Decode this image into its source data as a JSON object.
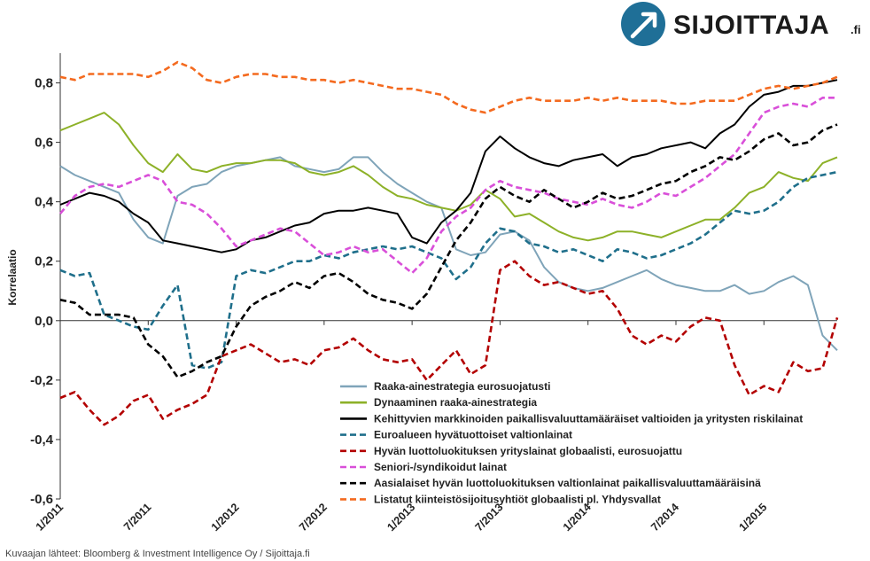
{
  "brand": {
    "name": "SIJOITTAJA",
    "suffix": ".fi",
    "accent": "#1f6f97"
  },
  "source_note": "Kuvaajan lähteet: Bloomberg & Investment Intelligence Oy / Sijoittaja.fi",
  "chart_data": {
    "type": "line",
    "title": "",
    "xlabel": "",
    "ylabel": "Korrelaatio",
    "ylim": [
      -0.6,
      0.9
    ],
    "yticks": [
      {
        "v": 0.8,
        "label": "0,8"
      },
      {
        "v": 0.6,
        "label": "0,6"
      },
      {
        "v": 0.4,
        "label": "0,4"
      },
      {
        "v": 0.2,
        "label": "0,2"
      },
      {
        "v": 0.0,
        "label": "0,0"
      },
      {
        "v": -0.2,
        "label": "-0,2"
      },
      {
        "v": -0.4,
        "label": "-0,4"
      },
      {
        "v": -0.6,
        "label": "-0,6"
      }
    ],
    "xlim": [
      "2011-01",
      "2015-06"
    ],
    "xticks": [
      "1/2011",
      "7/2011",
      "1/2012",
      "7/2012",
      "1/2013",
      "7/2013",
      "1/2014",
      "7/2014",
      "1/2015"
    ],
    "grid": false,
    "legend": "bottom-center",
    "series": [
      {
        "name": "Raaka-ainestrategia eurosuojatusti",
        "color": "#7fa4b9",
        "dash": "solid",
        "x": [
          "2011-01",
          "2011-02",
          "2011-03",
          "2011-04",
          "2011-05",
          "2011-06",
          "2011-07",
          "2011-08",
          "2011-09",
          "2011-10",
          "2011-11",
          "2011-12",
          "2012-01",
          "2012-02",
          "2012-03",
          "2012-04",
          "2012-05",
          "2012-06",
          "2012-07",
          "2012-08",
          "2012-09",
          "2012-10",
          "2012-11",
          "2012-12",
          "2013-01",
          "2013-02",
          "2013-03",
          "2013-04",
          "2013-05",
          "2013-06",
          "2013-07",
          "2013-08",
          "2013-09",
          "2013-10",
          "2013-11",
          "2013-12",
          "2014-01",
          "2014-02",
          "2014-03",
          "2014-04",
          "2014-05",
          "2014-06",
          "2014-07",
          "2014-08",
          "2014-09",
          "2014-10",
          "2014-11",
          "2014-12",
          "2015-01",
          "2015-02",
          "2015-03",
          "2015-04",
          "2015-05",
          "2015-06"
        ],
        "y": [
          0.52,
          0.49,
          0.47,
          0.45,
          0.43,
          0.34,
          0.28,
          0.26,
          0.42,
          0.45,
          0.46,
          0.5,
          0.52,
          0.53,
          0.54,
          0.55,
          0.52,
          0.51,
          0.5,
          0.51,
          0.55,
          0.55,
          0.5,
          0.46,
          0.43,
          0.4,
          0.38,
          0.24,
          0.22,
          0.23,
          0.29,
          0.3,
          0.27,
          0.18,
          0.13,
          0.11,
          0.1,
          0.11,
          0.13,
          0.15,
          0.17,
          0.14,
          0.12,
          0.11,
          0.1,
          0.1,
          0.12,
          0.09,
          0.1,
          0.13,
          0.15,
          0.12,
          -0.05,
          -0.1
        ]
      },
      {
        "name": "Dynaaminen raaka-ainestrategia",
        "color": "#8db128",
        "dash": "solid",
        "x": [
          "2011-01",
          "2011-02",
          "2011-03",
          "2011-04",
          "2011-05",
          "2011-06",
          "2011-07",
          "2011-08",
          "2011-09",
          "2011-10",
          "2011-11",
          "2011-12",
          "2012-01",
          "2012-02",
          "2012-03",
          "2012-04",
          "2012-05",
          "2012-06",
          "2012-07",
          "2012-08",
          "2012-09",
          "2012-10",
          "2012-11",
          "2012-12",
          "2013-01",
          "2013-02",
          "2013-03",
          "2013-04",
          "2013-05",
          "2013-06",
          "2013-07",
          "2013-08",
          "2013-09",
          "2013-10",
          "2013-11",
          "2013-12",
          "2014-01",
          "2014-02",
          "2014-03",
          "2014-04",
          "2014-05",
          "2014-06",
          "2014-07",
          "2014-08",
          "2014-09",
          "2014-10",
          "2014-11",
          "2014-12",
          "2015-01",
          "2015-02",
          "2015-03",
          "2015-04",
          "2015-05",
          "2015-06"
        ],
        "y": [
          0.64,
          0.66,
          0.68,
          0.7,
          0.66,
          0.59,
          0.53,
          0.5,
          0.56,
          0.51,
          0.5,
          0.52,
          0.53,
          0.53,
          0.54,
          0.54,
          0.53,
          0.5,
          0.49,
          0.5,
          0.52,
          0.49,
          0.45,
          0.42,
          0.41,
          0.39,
          0.38,
          0.37,
          0.39,
          0.44,
          0.41,
          0.35,
          0.36,
          0.33,
          0.3,
          0.28,
          0.27,
          0.28,
          0.3,
          0.3,
          0.29,
          0.28,
          0.3,
          0.32,
          0.34,
          0.34,
          0.38,
          0.43,
          0.45,
          0.5,
          0.48,
          0.47,
          0.53,
          0.55
        ]
      },
      {
        "name": "Kehittyvien markkinoiden paikallisvaluuttamääräiset valtioiden ja yritysten riskilainat",
        "color": "#000000",
        "dash": "solid",
        "x": [
          "2011-01",
          "2011-02",
          "2011-03",
          "2011-04",
          "2011-05",
          "2011-06",
          "2011-07",
          "2011-08",
          "2011-09",
          "2011-10",
          "2011-11",
          "2011-12",
          "2012-01",
          "2012-02",
          "2012-03",
          "2012-04",
          "2012-05",
          "2012-06",
          "2012-07",
          "2012-08",
          "2012-09",
          "2012-10",
          "2012-11",
          "2012-12",
          "2013-01",
          "2013-02",
          "2013-03",
          "2013-04",
          "2013-05",
          "2013-06",
          "2013-07",
          "2013-08",
          "2013-09",
          "2013-10",
          "2013-11",
          "2013-12",
          "2014-01",
          "2014-02",
          "2014-03",
          "2014-04",
          "2014-05",
          "2014-06",
          "2014-07",
          "2014-08",
          "2014-09",
          "2014-10",
          "2014-11",
          "2014-12",
          "2015-01",
          "2015-02",
          "2015-03",
          "2015-04",
          "2015-05",
          "2015-06"
        ],
        "y": [
          0.39,
          0.41,
          0.43,
          0.42,
          0.4,
          0.36,
          0.33,
          0.27,
          0.26,
          0.25,
          0.24,
          0.23,
          0.24,
          0.27,
          0.28,
          0.3,
          0.32,
          0.33,
          0.36,
          0.37,
          0.37,
          0.38,
          0.37,
          0.36,
          0.28,
          0.26,
          0.33,
          0.37,
          0.43,
          0.57,
          0.62,
          0.58,
          0.55,
          0.53,
          0.52,
          0.54,
          0.55,
          0.56,
          0.52,
          0.55,
          0.56,
          0.58,
          0.59,
          0.6,
          0.58,
          0.63,
          0.66,
          0.72,
          0.76,
          0.77,
          0.79,
          0.79,
          0.8,
          0.81
        ]
      },
      {
        "name": "Euroalueen hyvätuottoiset valtionlainat",
        "color": "#1f6f8b",
        "dash": "dashed",
        "x": [
          "2011-01",
          "2011-02",
          "2011-03",
          "2011-04",
          "2011-05",
          "2011-06",
          "2011-07",
          "2011-08",
          "2011-09",
          "2011-10",
          "2011-11",
          "2011-12",
          "2012-01",
          "2012-02",
          "2012-03",
          "2012-04",
          "2012-05",
          "2012-06",
          "2012-07",
          "2012-08",
          "2012-09",
          "2012-10",
          "2012-11",
          "2012-12",
          "2013-01",
          "2013-02",
          "2013-03",
          "2013-04",
          "2013-05",
          "2013-06",
          "2013-07",
          "2013-08",
          "2013-09",
          "2013-10",
          "2013-11",
          "2013-12",
          "2014-01",
          "2014-02",
          "2014-03",
          "2014-04",
          "2014-05",
          "2014-06",
          "2014-07",
          "2014-08",
          "2014-09",
          "2014-10",
          "2014-11",
          "2014-12",
          "2015-01",
          "2015-02",
          "2015-03",
          "2015-04",
          "2015-05",
          "2015-06"
        ],
        "y": [
          0.17,
          0.15,
          0.16,
          0.02,
          0.0,
          -0.02,
          -0.03,
          0.05,
          0.12,
          -0.15,
          -0.16,
          -0.14,
          0.15,
          0.17,
          0.16,
          0.18,
          0.2,
          0.2,
          0.22,
          0.21,
          0.23,
          0.24,
          0.25,
          0.24,
          0.25,
          0.23,
          0.21,
          0.14,
          0.18,
          0.26,
          0.31,
          0.3,
          0.26,
          0.25,
          0.23,
          0.24,
          0.22,
          0.2,
          0.24,
          0.23,
          0.21,
          0.22,
          0.24,
          0.26,
          0.29,
          0.33,
          0.37,
          0.36,
          0.37,
          0.4,
          0.45,
          0.48,
          0.49,
          0.5
        ]
      },
      {
        "name": "Hyvän luottoluokituksen yrityslainat globaalisti, eurosuojattu",
        "color": "#b30000",
        "dash": "dashed",
        "x": [
          "2011-01",
          "2011-02",
          "2011-03",
          "2011-04",
          "2011-05",
          "2011-06",
          "2011-07",
          "2011-08",
          "2011-09",
          "2011-10",
          "2011-11",
          "2011-12",
          "2012-01",
          "2012-02",
          "2012-03",
          "2012-04",
          "2012-05",
          "2012-06",
          "2012-07",
          "2012-08",
          "2012-09",
          "2012-10",
          "2012-11",
          "2012-12",
          "2013-01",
          "2013-02",
          "2013-03",
          "2013-04",
          "2013-05",
          "2013-06",
          "2013-07",
          "2013-08",
          "2013-09",
          "2013-10",
          "2013-11",
          "2013-12",
          "2014-01",
          "2014-02",
          "2014-03",
          "2014-04",
          "2014-05",
          "2014-06",
          "2014-07",
          "2014-08",
          "2014-09",
          "2014-10",
          "2014-11",
          "2014-12",
          "2015-01",
          "2015-02",
          "2015-03",
          "2015-04",
          "2015-05",
          "2015-06"
        ],
        "y": [
          -0.26,
          -0.24,
          -0.3,
          -0.35,
          -0.32,
          -0.27,
          -0.25,
          -0.33,
          -0.3,
          -0.28,
          -0.25,
          -0.12,
          -0.1,
          -0.08,
          -0.11,
          -0.14,
          -0.13,
          -0.15,
          -0.1,
          -0.09,
          -0.06,
          -0.1,
          -0.13,
          -0.14,
          -0.13,
          -0.2,
          -0.15,
          -0.1,
          -0.18,
          -0.15,
          0.17,
          0.2,
          0.15,
          0.12,
          0.13,
          0.11,
          0.09,
          0.1,
          0.04,
          -0.05,
          -0.08,
          -0.05,
          -0.07,
          -0.02,
          0.01,
          0.0,
          -0.15,
          -0.25,
          -0.22,
          -0.24,
          -0.14,
          -0.17,
          -0.16,
          0.01
        ]
      },
      {
        "name": "Seniori-/syndikoidut lainat",
        "color": "#d94fd9",
        "dash": "dashed",
        "x": [
          "2011-01",
          "2011-02",
          "2011-03",
          "2011-04",
          "2011-05",
          "2011-06",
          "2011-07",
          "2011-08",
          "2011-09",
          "2011-10",
          "2011-11",
          "2011-12",
          "2012-01",
          "2012-02",
          "2012-03",
          "2012-04",
          "2012-05",
          "2012-06",
          "2012-07",
          "2012-08",
          "2012-09",
          "2012-10",
          "2012-11",
          "2012-12",
          "2013-01",
          "2013-02",
          "2013-03",
          "2013-04",
          "2013-05",
          "2013-06",
          "2013-07",
          "2013-08",
          "2013-09",
          "2013-10",
          "2013-11",
          "2013-12",
          "2014-01",
          "2014-02",
          "2014-03",
          "2014-04",
          "2014-05",
          "2014-06",
          "2014-07",
          "2014-08",
          "2014-09",
          "2014-10",
          "2014-11",
          "2014-12",
          "2015-01",
          "2015-02",
          "2015-03",
          "2015-04",
          "2015-05",
          "2015-06"
        ],
        "y": [
          0.36,
          0.42,
          0.45,
          0.46,
          0.45,
          0.47,
          0.49,
          0.47,
          0.4,
          0.39,
          0.36,
          0.31,
          0.25,
          0.27,
          0.29,
          0.31,
          0.3,
          0.26,
          0.22,
          0.23,
          0.25,
          0.23,
          0.24,
          0.2,
          0.16,
          0.21,
          0.3,
          0.35,
          0.38,
          0.44,
          0.47,
          0.45,
          0.44,
          0.43,
          0.41,
          0.4,
          0.39,
          0.41,
          0.39,
          0.38,
          0.4,
          0.43,
          0.42,
          0.45,
          0.48,
          0.52,
          0.56,
          0.63,
          0.7,
          0.72,
          0.73,
          0.72,
          0.75,
          0.75
        ]
      },
      {
        "name": "Aasialaiset hyvän luottoluokituksen valtionlainat paikallisvaluuttamääräisinä",
        "color": "#000000",
        "dash": "dashed",
        "x": [
          "2011-01",
          "2011-02",
          "2011-03",
          "2011-04",
          "2011-05",
          "2011-06",
          "2011-07",
          "2011-08",
          "2011-09",
          "2011-10",
          "2011-11",
          "2011-12",
          "2012-01",
          "2012-02",
          "2012-03",
          "2012-04",
          "2012-05",
          "2012-06",
          "2012-07",
          "2012-08",
          "2012-09",
          "2012-10",
          "2012-11",
          "2012-12",
          "2013-01",
          "2013-02",
          "2013-03",
          "2013-04",
          "2013-05",
          "2013-06",
          "2013-07",
          "2013-08",
          "2013-09",
          "2013-10",
          "2013-11",
          "2013-12",
          "2014-01",
          "2014-02",
          "2014-03",
          "2014-04",
          "2014-05",
          "2014-06",
          "2014-07",
          "2014-08",
          "2014-09",
          "2014-10",
          "2014-11",
          "2014-12",
          "2015-01",
          "2015-02",
          "2015-03",
          "2015-04",
          "2015-05",
          "2015-06"
        ],
        "y": [
          0.07,
          0.06,
          0.02,
          0.02,
          0.02,
          0.01,
          -0.08,
          -0.12,
          -0.19,
          -0.17,
          -0.14,
          -0.12,
          -0.02,
          0.05,
          0.08,
          0.1,
          0.13,
          0.11,
          0.15,
          0.16,
          0.13,
          0.09,
          0.07,
          0.06,
          0.04,
          0.09,
          0.18,
          0.27,
          0.33,
          0.41,
          0.45,
          0.42,
          0.4,
          0.44,
          0.41,
          0.38,
          0.4,
          0.43,
          0.41,
          0.42,
          0.44,
          0.46,
          0.47,
          0.5,
          0.52,
          0.55,
          0.54,
          0.57,
          0.61,
          0.63,
          0.59,
          0.6,
          0.64,
          0.66
        ]
      },
      {
        "name": "Listatut kiinteistösijoitusyhtiöt globaalisti pl. Yhdysvallat",
        "color": "#f46a1f",
        "dash": "dashed",
        "x": [
          "2011-01",
          "2011-02",
          "2011-03",
          "2011-04",
          "2011-05",
          "2011-06",
          "2011-07",
          "2011-08",
          "2011-09",
          "2011-10",
          "2011-11",
          "2011-12",
          "2012-01",
          "2012-02",
          "2012-03",
          "2012-04",
          "2012-05",
          "2012-06",
          "2012-07",
          "2012-08",
          "2012-09",
          "2012-10",
          "2012-11",
          "2012-12",
          "2013-01",
          "2013-02",
          "2013-03",
          "2013-04",
          "2013-05",
          "2013-06",
          "2013-07",
          "2013-08",
          "2013-09",
          "2013-10",
          "2013-11",
          "2013-12",
          "2014-01",
          "2014-02",
          "2014-03",
          "2014-04",
          "2014-05",
          "2014-06",
          "2014-07",
          "2014-08",
          "2014-09",
          "2014-10",
          "2014-11",
          "2014-12",
          "2015-01",
          "2015-02",
          "2015-03",
          "2015-04",
          "2015-05",
          "2015-06"
        ],
        "y": [
          0.82,
          0.81,
          0.83,
          0.83,
          0.83,
          0.83,
          0.82,
          0.84,
          0.87,
          0.85,
          0.81,
          0.8,
          0.82,
          0.83,
          0.83,
          0.82,
          0.82,
          0.81,
          0.81,
          0.8,
          0.81,
          0.8,
          0.79,
          0.78,
          0.78,
          0.77,
          0.76,
          0.73,
          0.71,
          0.7,
          0.72,
          0.74,
          0.75,
          0.74,
          0.74,
          0.74,
          0.75,
          0.74,
          0.75,
          0.74,
          0.74,
          0.74,
          0.73,
          0.73,
          0.74,
          0.74,
          0.74,
          0.76,
          0.78,
          0.79,
          0.78,
          0.79,
          0.8,
          0.82
        ]
      }
    ]
  }
}
